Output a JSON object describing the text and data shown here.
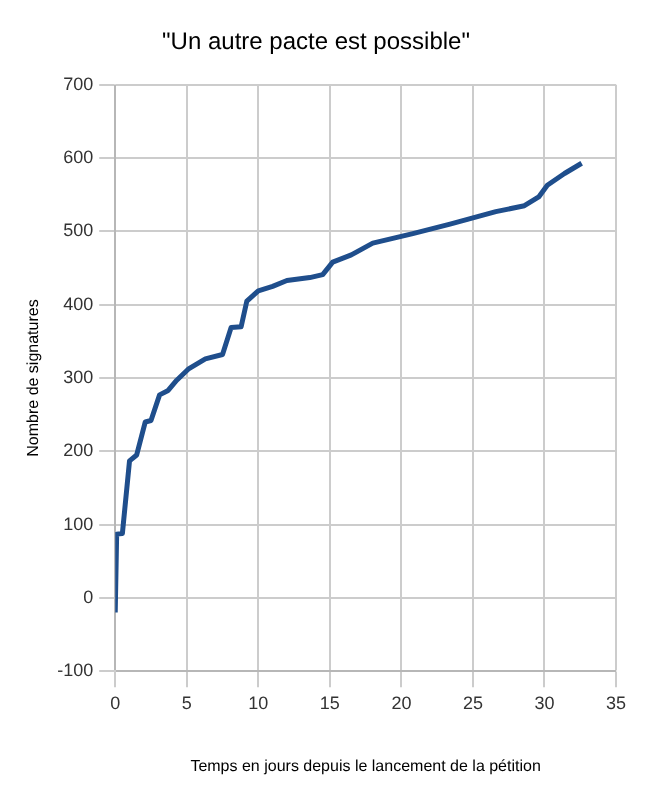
{
  "chart_data": {
    "type": "line",
    "title": "\"Un autre pacte est possible\"",
    "xlabel": "Temps en jours depuis le lancement de la pétition",
    "ylabel": "Nombre de signatures",
    "x": [
      0,
      0.1,
      0.5,
      1.0,
      1.5,
      2.1,
      2.5,
      3.1,
      3.7,
      4.3,
      5.1,
      6.3,
      7.5,
      8.1,
      8.8,
      9.2,
      10.0,
      11,
      12,
      13.6,
      14.5,
      15.2,
      16.5,
      18.0,
      20.8,
      23.4,
      26.6,
      28.6,
      29.6,
      30.2,
      31.4,
      32.6
    ],
    "series": [
      {
        "color": "#1f4e8c",
        "values": [
          -20,
          87,
          88,
          187,
          195,
          240,
          242,
          277,
          283,
          297,
          312,
          326,
          332,
          369,
          370,
          405,
          419,
          425,
          433,
          437,
          441,
          458,
          468,
          484,
          497,
          510,
          527,
          535,
          547,
          563,
          579,
          593
        ]
      }
    ],
    "xlim": [
      0,
      35
    ],
    "xticks": [
      0,
      5,
      10,
      15,
      20,
      25,
      30,
      35
    ],
    "ylim": [
      -100,
      700
    ],
    "yticks": [
      -100,
      0,
      100,
      200,
      300,
      400,
      500,
      600,
      700
    ],
    "grid": true,
    "legend": false,
    "marker": "none",
    "line_style": "solid"
  }
}
